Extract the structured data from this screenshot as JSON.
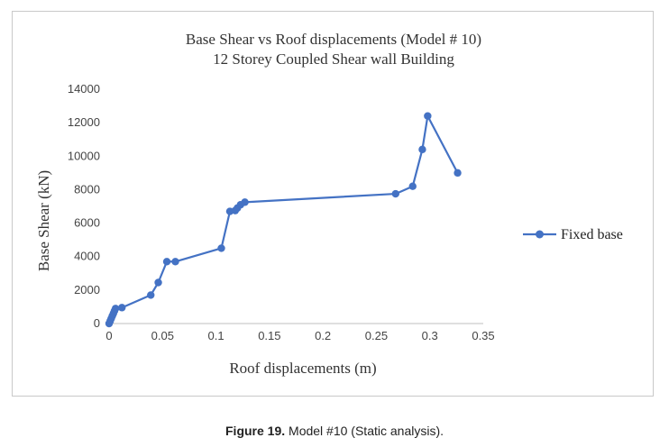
{
  "chart_data": {
    "type": "line",
    "title": "Base Shear vs Roof displacements (Model # 10)",
    "subtitle": "12 Storey Coupled Shear wall Building",
    "xlabel": "Roof displacements (m)",
    "ylabel": "Base Shear (kN)",
    "xlim": [
      0,
      0.35
    ],
    "ylim": [
      0,
      14000
    ],
    "x_ticks": [
      "0",
      "0.05",
      "0.1",
      "0.15",
      "0.2",
      "0.25",
      "0.3",
      "0.35"
    ],
    "y_ticks": [
      "0",
      "2000",
      "4000",
      "6000",
      "8000",
      "10000",
      "12000",
      "14000"
    ],
    "grid": false,
    "legend_position": "right",
    "series": [
      {
        "name": "Fixed base",
        "color": "#4472C4",
        "marker": "circle",
        "x": [
          0,
          0.001,
          0.002,
          0.003,
          0.004,
          0.005,
          0.006,
          0.012,
          0.039,
          0.046,
          0.054,
          0.062,
          0.105,
          0.113,
          0.118,
          0.12,
          0.123,
          0.127,
          0.268,
          0.284,
          0.293,
          0.298,
          0.326
        ],
        "y": [
          0,
          150,
          300,
          450,
          600,
          750,
          900,
          950,
          1700,
          2450,
          3700,
          3700,
          4500,
          6700,
          6750,
          6900,
          7100,
          7250,
          7750,
          8200,
          10400,
          12400,
          9000
        ]
      }
    ]
  },
  "caption": {
    "label": "Figure 19.",
    "text": "Model #10 (Static analysis)."
  }
}
